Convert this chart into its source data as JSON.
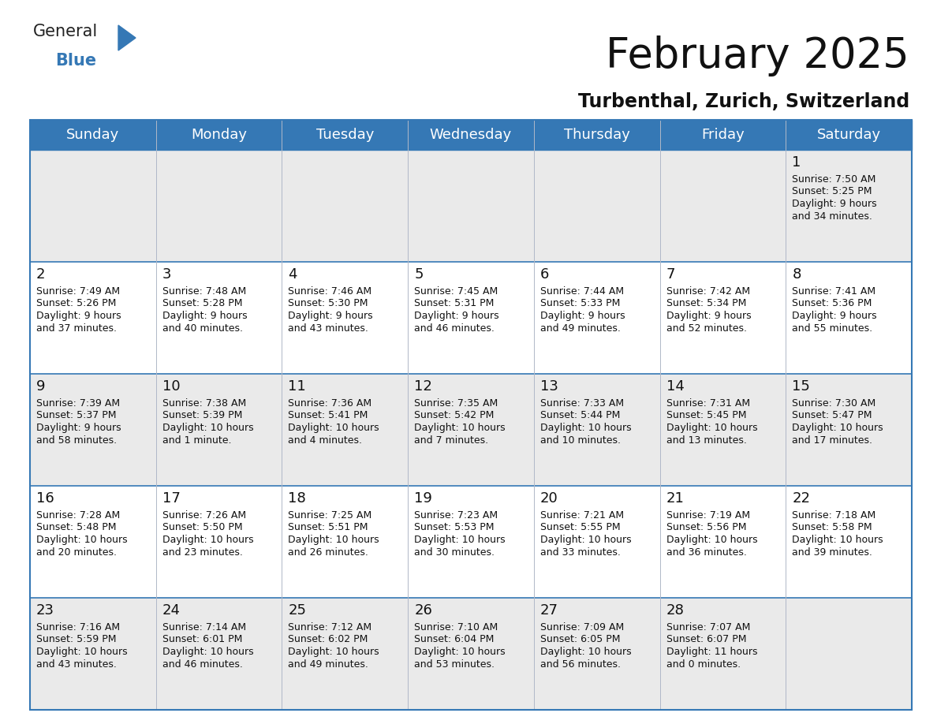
{
  "title": "February 2025",
  "subtitle": "Turbenthal, Zurich, Switzerland",
  "header_color": "#3578b5",
  "header_text_color": "#ffffff",
  "background_color": "#ffffff",
  "cell_bg_even": "#eaeaea",
  "cell_bg_odd": "#ffffff",
  "day_headers": [
    "Sunday",
    "Monday",
    "Tuesday",
    "Wednesday",
    "Thursday",
    "Friday",
    "Saturday"
  ],
  "weeks": [
    [
      null,
      null,
      null,
      null,
      null,
      null,
      {
        "day": 1,
        "sunrise": "7:50 AM",
        "sunset": "5:25 PM",
        "daylight_line1": "9 hours",
        "daylight_line2": "and 34 minutes."
      }
    ],
    [
      {
        "day": 2,
        "sunrise": "7:49 AM",
        "sunset": "5:26 PM",
        "daylight_line1": "9 hours",
        "daylight_line2": "and 37 minutes."
      },
      {
        "day": 3,
        "sunrise": "7:48 AM",
        "sunset": "5:28 PM",
        "daylight_line1": "9 hours",
        "daylight_line2": "and 40 minutes."
      },
      {
        "day": 4,
        "sunrise": "7:46 AM",
        "sunset": "5:30 PM",
        "daylight_line1": "9 hours",
        "daylight_line2": "and 43 minutes."
      },
      {
        "day": 5,
        "sunrise": "7:45 AM",
        "sunset": "5:31 PM",
        "daylight_line1": "9 hours",
        "daylight_line2": "and 46 minutes."
      },
      {
        "day": 6,
        "sunrise": "7:44 AM",
        "sunset": "5:33 PM",
        "daylight_line1": "9 hours",
        "daylight_line2": "and 49 minutes."
      },
      {
        "day": 7,
        "sunrise": "7:42 AM",
        "sunset": "5:34 PM",
        "daylight_line1": "9 hours",
        "daylight_line2": "and 52 minutes."
      },
      {
        "day": 8,
        "sunrise": "7:41 AM",
        "sunset": "5:36 PM",
        "daylight_line1": "9 hours",
        "daylight_line2": "and 55 minutes."
      }
    ],
    [
      {
        "day": 9,
        "sunrise": "7:39 AM",
        "sunset": "5:37 PM",
        "daylight_line1": "9 hours",
        "daylight_line2": "and 58 minutes."
      },
      {
        "day": 10,
        "sunrise": "7:38 AM",
        "sunset": "5:39 PM",
        "daylight_line1": "10 hours",
        "daylight_line2": "and 1 minute."
      },
      {
        "day": 11,
        "sunrise": "7:36 AM",
        "sunset": "5:41 PM",
        "daylight_line1": "10 hours",
        "daylight_line2": "and 4 minutes."
      },
      {
        "day": 12,
        "sunrise": "7:35 AM",
        "sunset": "5:42 PM",
        "daylight_line1": "10 hours",
        "daylight_line2": "and 7 minutes."
      },
      {
        "day": 13,
        "sunrise": "7:33 AM",
        "sunset": "5:44 PM",
        "daylight_line1": "10 hours",
        "daylight_line2": "and 10 minutes."
      },
      {
        "day": 14,
        "sunrise": "7:31 AM",
        "sunset": "5:45 PM",
        "daylight_line1": "10 hours",
        "daylight_line2": "and 13 minutes."
      },
      {
        "day": 15,
        "sunrise": "7:30 AM",
        "sunset": "5:47 PM",
        "daylight_line1": "10 hours",
        "daylight_line2": "and 17 minutes."
      }
    ],
    [
      {
        "day": 16,
        "sunrise": "7:28 AM",
        "sunset": "5:48 PM",
        "daylight_line1": "10 hours",
        "daylight_line2": "and 20 minutes."
      },
      {
        "day": 17,
        "sunrise": "7:26 AM",
        "sunset": "5:50 PM",
        "daylight_line1": "10 hours",
        "daylight_line2": "and 23 minutes."
      },
      {
        "day": 18,
        "sunrise": "7:25 AM",
        "sunset": "5:51 PM",
        "daylight_line1": "10 hours",
        "daylight_line2": "and 26 minutes."
      },
      {
        "day": 19,
        "sunrise": "7:23 AM",
        "sunset": "5:53 PM",
        "daylight_line1": "10 hours",
        "daylight_line2": "and 30 minutes."
      },
      {
        "day": 20,
        "sunrise": "7:21 AM",
        "sunset": "5:55 PM",
        "daylight_line1": "10 hours",
        "daylight_line2": "and 33 minutes."
      },
      {
        "day": 21,
        "sunrise": "7:19 AM",
        "sunset": "5:56 PM",
        "daylight_line1": "10 hours",
        "daylight_line2": "and 36 minutes."
      },
      {
        "day": 22,
        "sunrise": "7:18 AM",
        "sunset": "5:58 PM",
        "daylight_line1": "10 hours",
        "daylight_line2": "and 39 minutes."
      }
    ],
    [
      {
        "day": 23,
        "sunrise": "7:16 AM",
        "sunset": "5:59 PM",
        "daylight_line1": "10 hours",
        "daylight_line2": "and 43 minutes."
      },
      {
        "day": 24,
        "sunrise": "7:14 AM",
        "sunset": "6:01 PM",
        "daylight_line1": "10 hours",
        "daylight_line2": "and 46 minutes."
      },
      {
        "day": 25,
        "sunrise": "7:12 AM",
        "sunset": "6:02 PM",
        "daylight_line1": "10 hours",
        "daylight_line2": "and 49 minutes."
      },
      {
        "day": 26,
        "sunrise": "7:10 AM",
        "sunset": "6:04 PM",
        "daylight_line1": "10 hours",
        "daylight_line2": "and 53 minutes."
      },
      {
        "day": 27,
        "sunrise": "7:09 AM",
        "sunset": "6:05 PM",
        "daylight_line1": "10 hours",
        "daylight_line2": "and 56 minutes."
      },
      {
        "day": 28,
        "sunrise": "7:07 AM",
        "sunset": "6:07 PM",
        "daylight_line1": "11 hours",
        "daylight_line2": "and 0 minutes."
      },
      null
    ]
  ],
  "title_fontsize": 38,
  "subtitle_fontsize": 17,
  "header_fontsize": 13,
  "day_num_fontsize": 13,
  "cell_text_fontsize": 9
}
